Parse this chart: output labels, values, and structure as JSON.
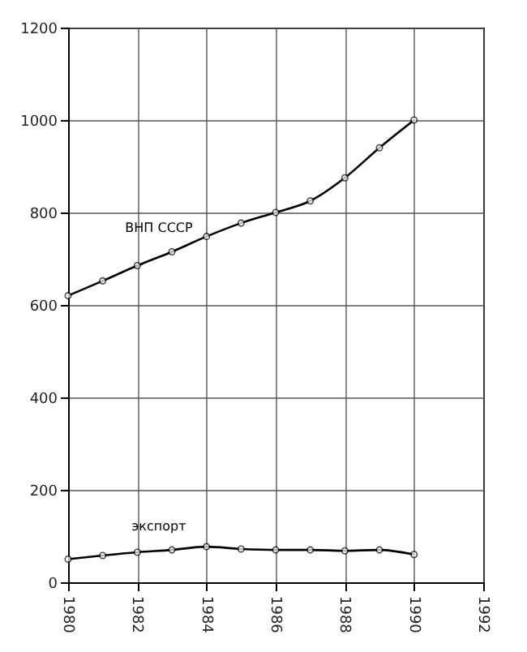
{
  "chart_data": {
    "type": "line",
    "x": [
      1980,
      1981,
      1982,
      1983,
      1984,
      1985,
      1986,
      1987,
      1988,
      1989,
      1990
    ],
    "series": [
      {
        "name": "ВНП СССР",
        "color": "#000000",
        "values": [
          620,
          652,
          685,
          715,
          748,
          777,
          800,
          825,
          875,
          940,
          1000
        ]
      },
      {
        "name": "экспорт",
        "color": "#000000",
        "values": [
          50,
          58,
          65,
          70,
          77,
          72,
          70,
          70,
          68,
          70,
          60
        ]
      }
    ],
    "xlim": [
      1980,
      1992
    ],
    "xticks": [
      1980,
      1982,
      1984,
      1986,
      1988,
      1990,
      1992
    ],
    "ylim": [
      0,
      1200
    ],
    "yticks": [
      0,
      200,
      400,
      600,
      800,
      1000,
      1200
    ],
    "grid": true,
    "marker": "circle",
    "line_style": "solid"
  }
}
